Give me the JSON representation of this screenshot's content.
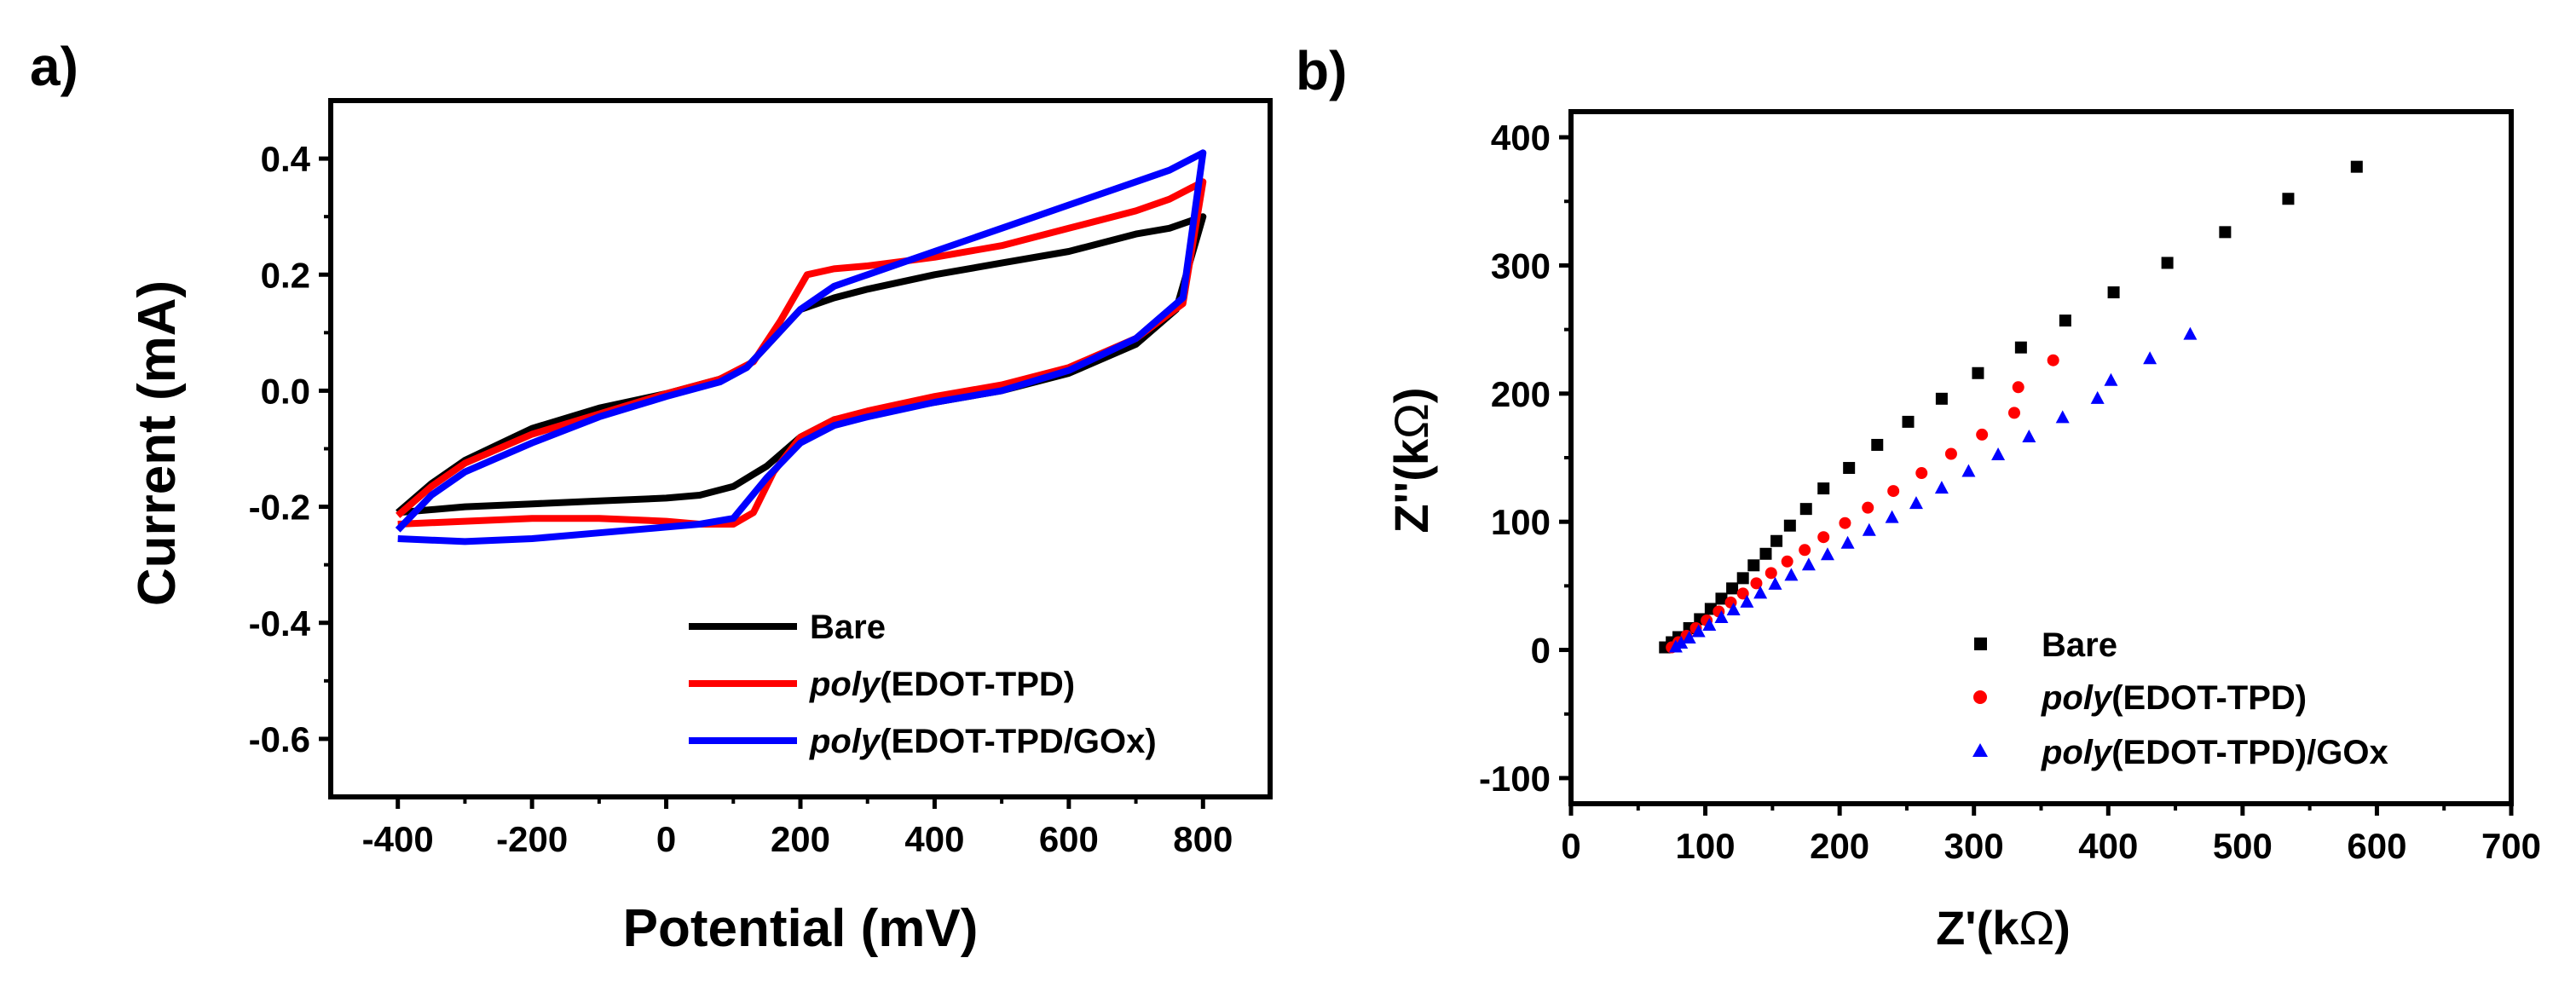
{
  "chart_data": [
    {
      "panel_label": "a)",
      "type": "line",
      "xlabel": "Potential (mV)",
      "ylabel": "Current (mA)",
      "xlim": [
        -500,
        900
      ],
      "ylim": [
        -0.7,
        0.5
      ],
      "xticks": [
        -400,
        -200,
        0,
        200,
        400,
        600,
        800
      ],
      "yticks": [
        0.4,
        0.2,
        0.0,
        -0.2,
        -0.4,
        -0.6
      ],
      "ytick_labels": [
        "0.4",
        "0.2",
        "0.0",
        "-0.2",
        "-0.4",
        "-0.6"
      ],
      "legend_position": "bottom-right",
      "series": [
        {
          "name_italic": "",
          "name": "Bare",
          "color": "#000000",
          "points": [
            [
              -400,
              -0.21
            ],
            [
              -300,
              -0.2
            ],
            [
              -200,
              -0.195
            ],
            [
              -100,
              -0.19
            ],
            [
              0,
              -0.185
            ],
            [
              50,
              -0.18
            ],
            [
              100,
              -0.165
            ],
            [
              150,
              -0.13
            ],
            [
              200,
              -0.08
            ],
            [
              250,
              -0.05
            ],
            [
              300,
              -0.04
            ],
            [
              400,
              -0.02
            ],
            [
              500,
              0.0
            ],
            [
              600,
              0.03
            ],
            [
              700,
              0.08
            ],
            [
              760,
              0.14
            ],
            [
              800,
              0.3
            ],
            [
              800,
              0.3
            ],
            [
              750,
              0.28
            ],
            [
              700,
              0.27
            ],
            [
              600,
              0.24
            ],
            [
              500,
              0.22
            ],
            [
              400,
              0.2
            ],
            [
              300,
              0.175
            ],
            [
              250,
              0.16
            ],
            [
              200,
              0.14
            ],
            [
              160,
              0.09
            ],
            [
              120,
              0.04
            ],
            [
              80,
              0.02
            ],
            [
              0,
              -0.005
            ],
            [
              -100,
              -0.03
            ],
            [
              -200,
              -0.065
            ],
            [
              -300,
              -0.12
            ],
            [
              -350,
              -0.16
            ],
            [
              -400,
              -0.21
            ]
          ]
        },
        {
          "name_italic": "poly",
          "name": "(EDOT-TPD)",
          "color": "#ff0000",
          "points": [
            [
              -400,
              -0.23
            ],
            [
              -300,
              -0.225
            ],
            [
              -200,
              -0.22
            ],
            [
              -100,
              -0.22
            ],
            [
              0,
              -0.225
            ],
            [
              50,
              -0.23
            ],
            [
              100,
              -0.23
            ],
            [
              130,
              -0.21
            ],
            [
              160,
              -0.14
            ],
            [
              200,
              -0.08
            ],
            [
              250,
              -0.05
            ],
            [
              300,
              -0.035
            ],
            [
              400,
              -0.01
            ],
            [
              500,
              0.01
            ],
            [
              600,
              0.04
            ],
            [
              700,
              0.09
            ],
            [
              770,
              0.15
            ],
            [
              800,
              0.36
            ],
            [
              800,
              0.36
            ],
            [
              750,
              0.33
            ],
            [
              700,
              0.31
            ],
            [
              600,
              0.28
            ],
            [
              500,
              0.25
            ],
            [
              400,
              0.23
            ],
            [
              300,
              0.215
            ],
            [
              250,
              0.21
            ],
            [
              210,
              0.2
            ],
            [
              170,
              0.12
            ],
            [
              130,
              0.05
            ],
            [
              80,
              0.02
            ],
            [
              0,
              -0.005
            ],
            [
              -100,
              -0.04
            ],
            [
              -200,
              -0.075
            ],
            [
              -300,
              -0.125
            ],
            [
              -350,
              -0.165
            ],
            [
              -400,
              -0.215
            ]
          ]
        },
        {
          "name_italic": "poly",
          "name": "(EDOT-TPD/GOx)",
          "color": "#0000ff",
          "points": [
            [
              -400,
              -0.255
            ],
            [
              -300,
              -0.26
            ],
            [
              -200,
              -0.255
            ],
            [
              -100,
              -0.245
            ],
            [
              0,
              -0.235
            ],
            [
              50,
              -0.23
            ],
            [
              100,
              -0.22
            ],
            [
              150,
              -0.15
            ],
            [
              200,
              -0.09
            ],
            [
              250,
              -0.06
            ],
            [
              300,
              -0.045
            ],
            [
              400,
              -0.02
            ],
            [
              500,
              0.0
            ],
            [
              600,
              0.035
            ],
            [
              700,
              0.09
            ],
            [
              770,
              0.16
            ],
            [
              800,
              0.41
            ],
            [
              800,
              0.41
            ],
            [
              750,
              0.38
            ],
            [
              700,
              0.36
            ],
            [
              600,
              0.32
            ],
            [
              500,
              0.28
            ],
            [
              400,
              0.24
            ],
            [
              300,
              0.2
            ],
            [
              250,
              0.18
            ],
            [
              200,
              0.14
            ],
            [
              160,
              0.09
            ],
            [
              120,
              0.04
            ],
            [
              80,
              0.015
            ],
            [
              0,
              -0.01
            ],
            [
              -100,
              -0.045
            ],
            [
              -200,
              -0.09
            ],
            [
              -300,
              -0.14
            ],
            [
              -350,
              -0.18
            ],
            [
              -400,
              -0.24
            ]
          ]
        }
      ]
    },
    {
      "panel_label": "b)",
      "type": "scatter",
      "xlabel_prefix": "Z'(k",
      "ylabel_prefix": "Z''(k",
      "unit_symbol": "Ω",
      "label_suffix": ")",
      "xlim": [
        0,
        700
      ],
      "ylim": [
        -120,
        420
      ],
      "xticks": [
        0,
        100,
        200,
        300,
        400,
        500,
        600,
        700
      ],
      "yticks": [
        400,
        300,
        200,
        100,
        0,
        -100
      ],
      "legend_position": "bottom-right",
      "series": [
        {
          "name_italic": "",
          "name": "Bare",
          "color": "#000000",
          "marker": "square",
          "points": [
            [
              70,
              2
            ],
            [
              75,
              6
            ],
            [
              80,
              10
            ],
            [
              88,
              17
            ],
            [
              96,
              24
            ],
            [
              104,
              32
            ],
            [
              112,
              40
            ],
            [
              120,
              48
            ],
            [
              128,
              56
            ],
            [
              136,
              66
            ],
            [
              145,
              75
            ],
            [
              153,
              85
            ],
            [
              163,
              97
            ],
            [
              175,
              110
            ],
            [
              188,
              126
            ],
            [
              207,
              142
            ],
            [
              228,
              160
            ],
            [
              251,
              178
            ],
            [
              276,
              196
            ],
            [
              303,
              216
            ],
            [
              335,
              236
            ],
            [
              368,
              257
            ],
            [
              404,
              279
            ],
            [
              444,
              302
            ],
            [
              487,
              326
            ],
            [
              534,
              352
            ],
            [
              585,
              377
            ]
          ]
        },
        {
          "name_italic": "poly",
          "name": "(EDOT-TPD)",
          "color": "#ff0000",
          "marker": "circle",
          "points": [
            [
              75,
              2
            ],
            [
              80,
              6
            ],
            [
              86,
              11
            ],
            [
              93,
              17
            ],
            [
              101,
              23
            ],
            [
              110,
              30
            ],
            [
              119,
              37
            ],
            [
              128,
              44
            ],
            [
              138,
              52
            ],
            [
              149,
              60
            ],
            [
              161,
              69
            ],
            [
              174,
              78
            ],
            [
              188,
              88
            ],
            [
              204,
              99
            ],
            [
              221,
              111
            ],
            [
              240,
              124
            ],
            [
              261,
              138
            ],
            [
              283,
              153
            ],
            [
              306,
              168
            ],
            [
              330,
              185
            ],
            [
              333,
              205
            ],
            [
              359,
              226
            ]
          ]
        },
        {
          "name_italic": "poly",
          "name": "(EDOT-TPD)/GOx",
          "color": "#0000ff",
          "marker": "triangle",
          "points": [
            [
              78,
              2
            ],
            [
              82,
              5
            ],
            [
              88,
              9
            ],
            [
              95,
              14
            ],
            [
              103,
              19
            ],
            [
              112,
              25
            ],
            [
              121,
              31
            ],
            [
              131,
              37
            ],
            [
              141,
              44
            ],
            [
              152,
              51
            ],
            [
              164,
              58
            ],
            [
              177,
              66
            ],
            [
              191,
              74
            ],
            [
              206,
              83
            ],
            [
              222,
              93
            ],
            [
              239,
              103
            ],
            [
              257,
              114
            ],
            [
              276,
              126
            ],
            [
              296,
              139
            ],
            [
              318,
              152
            ],
            [
              341,
              166
            ],
            [
              366,
              181
            ],
            [
              392,
              196
            ],
            [
              402,
              210
            ],
            [
              431,
              227
            ],
            [
              461,
              246
            ]
          ]
        }
      ]
    }
  ]
}
